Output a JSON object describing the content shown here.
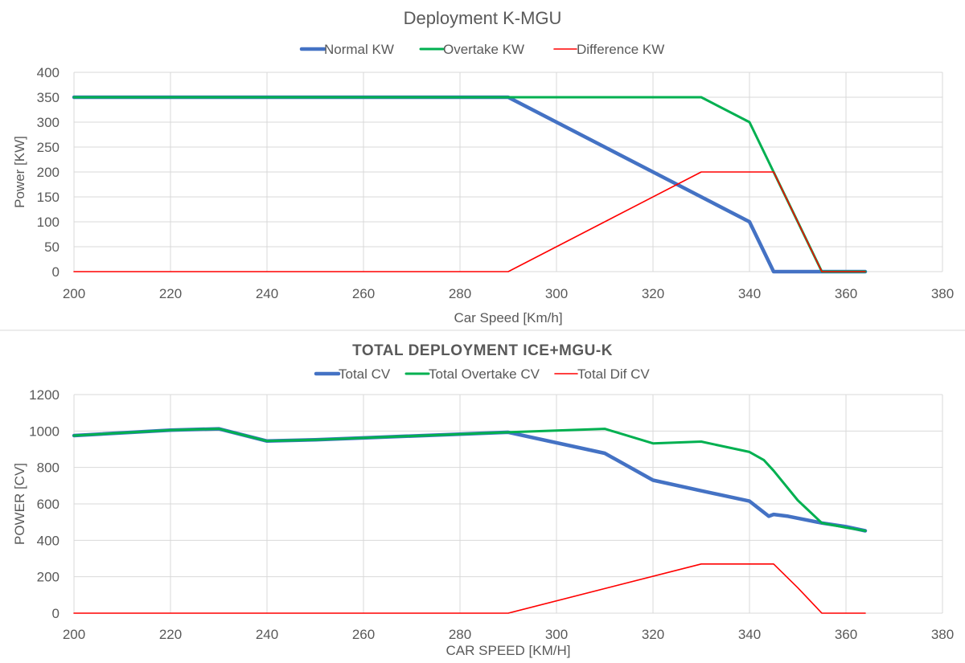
{
  "chart_data": [
    {
      "type": "line",
      "title": "Deployment K-MGU",
      "xlabel": "Car Speed [Km/h]",
      "ylabel": "Power [KW]",
      "xlim": [
        200,
        380
      ],
      "ylim": [
        0,
        400
      ],
      "x_ticks": [
        "200",
        "220",
        "240",
        "260",
        "280",
        "300",
        "320",
        "340",
        "360",
        "380"
      ],
      "y_ticks": [
        "0",
        "50",
        "100",
        "150",
        "200",
        "250",
        "300",
        "350",
        "400"
      ],
      "grid": true,
      "legend_position": "top",
      "series": [
        {
          "name": "Normal KW",
          "color": "#4472C4",
          "width": "thick",
          "points": [
            [
              200,
              350
            ],
            [
              290,
              350
            ],
            [
              300,
              300
            ],
            [
              310,
              250
            ],
            [
              320,
              200
            ],
            [
              330,
              150
            ],
            [
              340,
              100
            ],
            [
              341,
              80
            ],
            [
              345,
              0
            ],
            [
              355,
              0
            ],
            [
              364,
              0
            ]
          ]
        },
        {
          "name": "Overtake KW",
          "color": "#00B050",
          "width": "medium",
          "points": [
            [
              200,
              350
            ],
            [
              290,
              350
            ],
            [
              330,
              350
            ],
            [
              340,
              300
            ],
            [
              345,
              200
            ],
            [
              355,
              0
            ],
            [
              364,
              0
            ]
          ]
        },
        {
          "name": "Difference KW",
          "color": "#FF0000",
          "width": "thin",
          "points": [
            [
              200,
              0
            ],
            [
              290,
              0
            ],
            [
              330,
              200
            ],
            [
              345,
              200
            ],
            [
              355,
              0
            ],
            [
              364,
              0
            ]
          ]
        }
      ]
    },
    {
      "type": "line",
      "title": "TOTAL DEPLOYMENT ICE+MGU-K",
      "xlabel": "CAR SPEED [KM/H]",
      "ylabel": "POWER [CV]",
      "xlim": [
        200,
        380
      ],
      "ylim": [
        0,
        1200
      ],
      "x_ticks": [
        "200",
        "220",
        "240",
        "260",
        "280",
        "300",
        "320",
        "340",
        "360",
        "380"
      ],
      "y_ticks": [
        "0",
        "200",
        "400",
        "600",
        "800",
        "1000",
        "1200"
      ],
      "grid": true,
      "legend_position": "top",
      "series": [
        {
          "name": "Total CV",
          "color": "#4472C4",
          "width": "thick",
          "points": [
            [
              200,
              975
            ],
            [
              220,
              1005
            ],
            [
              230,
              1012
            ],
            [
              240,
              945
            ],
            [
              250,
              952
            ],
            [
              290,
              993
            ],
            [
              310,
              878
            ],
            [
              320,
              730
            ],
            [
              330,
              672
            ],
            [
              340,
              615
            ],
            [
              344,
              532
            ],
            [
              345,
              542
            ],
            [
              348,
              532
            ],
            [
              355,
              495
            ],
            [
              360,
              475
            ],
            [
              364,
              452
            ]
          ]
        },
        {
          "name": "Total Overtake CV",
          "color": "#00B050",
          "width": "medium",
          "points": [
            [
              200,
              975
            ],
            [
              220,
              1005
            ],
            [
              230,
              1012
            ],
            [
              240,
              945
            ],
            [
              250,
              952
            ],
            [
              290,
              993
            ],
            [
              310,
              1012
            ],
            [
              320,
              932
            ],
            [
              330,
              942
            ],
            [
              340,
              885
            ],
            [
              343,
              840
            ],
            [
              345,
              782
            ],
            [
              350,
              620
            ],
            [
              355,
              495
            ],
            [
              360,
              470
            ],
            [
              364,
              452
            ]
          ]
        },
        {
          "name": "Total Dif CV",
          "color": "#FF0000",
          "width": "thin",
          "points": [
            [
              200,
              0
            ],
            [
              290,
              0
            ],
            [
              330,
              270
            ],
            [
              345,
              270
            ],
            [
              350,
              140
            ],
            [
              355,
              0
            ],
            [
              364,
              0
            ]
          ]
        }
      ]
    }
  ]
}
